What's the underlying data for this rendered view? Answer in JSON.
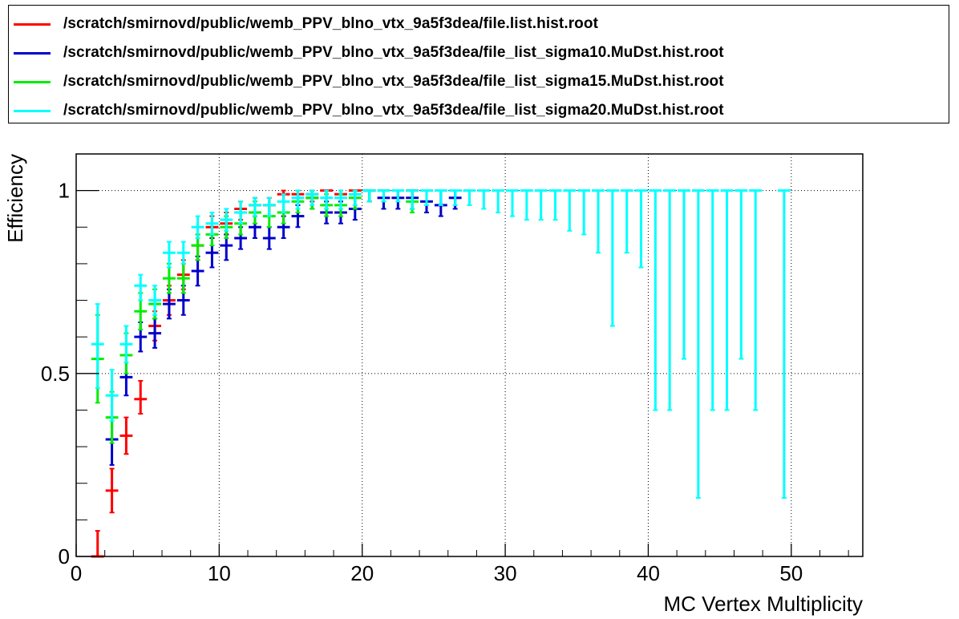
{
  "chart_data": {
    "type": "scatter",
    "title": "",
    "xlabel": "MC Vertex Multiplicity",
    "ylabel": "Efficiency",
    "xlim": [
      0,
      55
    ],
    "ylim": [
      0,
      1.1
    ],
    "grid": true,
    "legend_position": "top",
    "x_tick_labels": [
      "0",
      "10",
      "20",
      "30",
      "40",
      "50"
    ],
    "y_tick_labels": [
      "0",
      "0.5",
      "1"
    ],
    "series": [
      {
        "name": "/scratch/smirnovd/public/wemb_PPV_blno_vtx_9a5f3dea/file.list.hist.root",
        "color": "#ff0000",
        "points": [
          {
            "x": 1.5,
            "y": 0.0,
            "lo": 0.0,
            "hi": 0.07
          },
          {
            "x": 2.5,
            "y": 0.18,
            "lo": 0.12,
            "hi": 0.24
          },
          {
            "x": 3.5,
            "y": 0.33,
            "lo": 0.28,
            "hi": 0.38
          },
          {
            "x": 4.5,
            "y": 0.43,
            "lo": 0.39,
            "hi": 0.48
          },
          {
            "x": 5.5,
            "y": 0.63,
            "lo": 0.59,
            "hi": 0.67
          },
          {
            "x": 6.5,
            "y": 0.7,
            "lo": 0.66,
            "hi": 0.74
          },
          {
            "x": 7.5,
            "y": 0.77,
            "lo": 0.73,
            "hi": 0.81
          },
          {
            "x": 8.5,
            "y": 0.85,
            "lo": 0.81,
            "hi": 0.88
          },
          {
            "x": 9.5,
            "y": 0.9,
            "lo": 0.87,
            "hi": 0.93
          },
          {
            "x": 10.5,
            "y": 0.91,
            "lo": 0.88,
            "hi": 0.94
          },
          {
            "x": 11.5,
            "y": 0.95,
            "lo": 0.92,
            "hi": 0.97
          },
          {
            "x": 12.5,
            "y": 0.96,
            "lo": 0.93,
            "hi": 0.98
          },
          {
            "x": 13.5,
            "y": 0.96,
            "lo": 0.93,
            "hi": 0.98
          },
          {
            "x": 14.5,
            "y": 0.99,
            "lo": 0.97,
            "hi": 1.0
          },
          {
            "x": 15.5,
            "y": 0.99,
            "lo": 0.97,
            "hi": 1.0
          },
          {
            "x": 16.5,
            "y": 0.99,
            "lo": 0.97,
            "hi": 1.0
          },
          {
            "x": 17.5,
            "y": 1.0,
            "lo": 0.98,
            "hi": 1.0
          },
          {
            "x": 18.5,
            "y": 0.99,
            "lo": 0.97,
            "hi": 1.0
          },
          {
            "x": 19.5,
            "y": 1.0,
            "lo": 0.98,
            "hi": 1.0
          },
          {
            "x": 23.5,
            "y": 1.0,
            "lo": 0.97,
            "hi": 1.0
          }
        ]
      },
      {
        "name": "/scratch/smirnovd/public/wemb_PPV_blno_vtx_9a5f3dea/file_list_sigma10.MuDst.hist.root",
        "color": "#0000cc",
        "points": [
          {
            "x": 2.5,
            "y": 0.32,
            "lo": 0.25,
            "hi": 0.38
          },
          {
            "x": 3.5,
            "y": 0.49,
            "lo": 0.44,
            "hi": 0.55
          },
          {
            "x": 4.5,
            "y": 0.6,
            "lo": 0.56,
            "hi": 0.64
          },
          {
            "x": 5.5,
            "y": 0.61,
            "lo": 0.57,
            "hi": 0.65
          },
          {
            "x": 6.5,
            "y": 0.69,
            "lo": 0.65,
            "hi": 0.73
          },
          {
            "x": 7.5,
            "y": 0.7,
            "lo": 0.66,
            "hi": 0.74
          },
          {
            "x": 8.5,
            "y": 0.78,
            "lo": 0.74,
            "hi": 0.82
          },
          {
            "x": 9.5,
            "y": 0.83,
            "lo": 0.79,
            "hi": 0.87
          },
          {
            "x": 10.5,
            "y": 0.85,
            "lo": 0.81,
            "hi": 0.88
          },
          {
            "x": 11.5,
            "y": 0.87,
            "lo": 0.84,
            "hi": 0.9
          },
          {
            "x": 12.5,
            "y": 0.9,
            "lo": 0.87,
            "hi": 0.93
          },
          {
            "x": 13.5,
            "y": 0.87,
            "lo": 0.84,
            "hi": 0.9
          },
          {
            "x": 14.5,
            "y": 0.9,
            "lo": 0.87,
            "hi": 0.93
          },
          {
            "x": 15.5,
            "y": 0.93,
            "lo": 0.9,
            "hi": 0.96
          },
          {
            "x": 16.5,
            "y": 0.98,
            "lo": 0.95,
            "hi": 1.0
          },
          {
            "x": 17.5,
            "y": 0.94,
            "lo": 0.91,
            "hi": 0.97
          },
          {
            "x": 18.5,
            "y": 0.94,
            "lo": 0.91,
            "hi": 0.97
          },
          {
            "x": 19.5,
            "y": 0.95,
            "lo": 0.92,
            "hi": 0.98
          },
          {
            "x": 20.5,
            "y": 1.0,
            "lo": 0.97,
            "hi": 1.0
          },
          {
            "x": 21.5,
            "y": 0.98,
            "lo": 0.95,
            "hi": 1.0
          },
          {
            "x": 22.5,
            "y": 0.98,
            "lo": 0.95,
            "hi": 1.0
          },
          {
            "x": 23.5,
            "y": 0.98,
            "lo": 0.95,
            "hi": 1.0
          },
          {
            "x": 24.5,
            "y": 0.97,
            "lo": 0.94,
            "hi": 1.0
          },
          {
            "x": 25.5,
            "y": 0.96,
            "lo": 0.93,
            "hi": 1.0
          },
          {
            "x": 26.5,
            "y": 0.98,
            "lo": 0.95,
            "hi": 1.0
          }
        ]
      },
      {
        "name": "/scratch/smirnovd/public/wemb_PPV_blno_vtx_9a5f3dea/file_list_sigma15.MuDst.hist.root",
        "color": "#00ee00",
        "points": [
          {
            "x": 1.5,
            "y": 0.54,
            "lo": 0.42,
            "hi": 0.66
          },
          {
            "x": 2.5,
            "y": 0.38,
            "lo": 0.31,
            "hi": 0.45
          },
          {
            "x": 3.5,
            "y": 0.55,
            "lo": 0.5,
            "hi": 0.61
          },
          {
            "x": 4.5,
            "y": 0.67,
            "lo": 0.62,
            "hi": 0.72
          },
          {
            "x": 5.5,
            "y": 0.69,
            "lo": 0.65,
            "hi": 0.73
          },
          {
            "x": 6.5,
            "y": 0.76,
            "lo": 0.72,
            "hi": 0.8
          },
          {
            "x": 7.5,
            "y": 0.76,
            "lo": 0.72,
            "hi": 0.8
          },
          {
            "x": 8.5,
            "y": 0.85,
            "lo": 0.81,
            "hi": 0.88
          },
          {
            "x": 9.5,
            "y": 0.88,
            "lo": 0.85,
            "hi": 0.91
          },
          {
            "x": 10.5,
            "y": 0.9,
            "lo": 0.87,
            "hi": 0.93
          },
          {
            "x": 11.5,
            "y": 0.91,
            "lo": 0.88,
            "hi": 0.94
          },
          {
            "x": 12.5,
            "y": 0.94,
            "lo": 0.91,
            "hi": 0.97
          },
          {
            "x": 13.5,
            "y": 0.93,
            "lo": 0.9,
            "hi": 0.96
          },
          {
            "x": 14.5,
            "y": 0.94,
            "lo": 0.91,
            "hi": 0.97
          },
          {
            "x": 15.5,
            "y": 0.97,
            "lo": 0.94,
            "hi": 1.0
          },
          {
            "x": 16.5,
            "y": 0.98,
            "lo": 0.95,
            "hi": 1.0
          },
          {
            "x": 17.5,
            "y": 0.96,
            "lo": 0.93,
            "hi": 0.99
          },
          {
            "x": 18.5,
            "y": 0.96,
            "lo": 0.93,
            "hi": 0.99
          },
          {
            "x": 19.5,
            "y": 0.98,
            "lo": 0.95,
            "hi": 1.0
          },
          {
            "x": 20.5,
            "y": 1.0,
            "lo": 0.97,
            "hi": 1.0
          },
          {
            "x": 21.5,
            "y": 1.0,
            "lo": 0.97,
            "hi": 1.0
          },
          {
            "x": 23.5,
            "y": 0.97,
            "lo": 0.94,
            "hi": 1.0
          }
        ]
      },
      {
        "name": "/scratch/smirnovd/public/wemb_PPV_blno_vtx_9a5f3dea/file_list_sigma20.MuDst.hist.root",
        "color": "#00ffff",
        "points": [
          {
            "x": 1.5,
            "y": 0.58,
            "lo": 0.46,
            "hi": 0.69
          },
          {
            "x": 2.5,
            "y": 0.44,
            "lo": 0.37,
            "hi": 0.51
          },
          {
            "x": 3.5,
            "y": 0.58,
            "lo": 0.53,
            "hi": 0.63
          },
          {
            "x": 4.5,
            "y": 0.74,
            "lo": 0.7,
            "hi": 0.77
          },
          {
            "x": 5.5,
            "y": 0.7,
            "lo": 0.66,
            "hi": 0.74
          },
          {
            "x": 6.5,
            "y": 0.83,
            "lo": 0.79,
            "hi": 0.86
          },
          {
            "x": 7.5,
            "y": 0.83,
            "lo": 0.8,
            "hi": 0.86
          },
          {
            "x": 8.5,
            "y": 0.9,
            "lo": 0.87,
            "hi": 0.93
          },
          {
            "x": 9.5,
            "y": 0.91,
            "lo": 0.88,
            "hi": 0.94
          },
          {
            "x": 10.5,
            "y": 0.92,
            "lo": 0.89,
            "hi": 0.95
          },
          {
            "x": 11.5,
            "y": 0.94,
            "lo": 0.91,
            "hi": 0.97
          },
          {
            "x": 12.5,
            "y": 0.96,
            "lo": 0.93,
            "hi": 0.98
          },
          {
            "x": 13.5,
            "y": 0.96,
            "lo": 0.93,
            "hi": 0.98
          },
          {
            "x": 14.5,
            "y": 0.97,
            "lo": 0.94,
            "hi": 0.99
          },
          {
            "x": 15.5,
            "y": 0.98,
            "lo": 0.95,
            "hi": 1.0
          },
          {
            "x": 16.5,
            "y": 0.99,
            "lo": 0.96,
            "hi": 1.0
          },
          {
            "x": 17.5,
            "y": 0.98,
            "lo": 0.95,
            "hi": 1.0
          },
          {
            "x": 18.5,
            "y": 0.98,
            "lo": 0.95,
            "hi": 1.0
          },
          {
            "x": 19.5,
            "y": 0.99,
            "lo": 0.96,
            "hi": 1.0
          },
          {
            "x": 20.5,
            "y": 1.0,
            "lo": 0.97,
            "hi": 1.0
          },
          {
            "x": 21.5,
            "y": 1.0,
            "lo": 0.97,
            "hi": 1.0
          },
          {
            "x": 22.5,
            "y": 1.0,
            "lo": 0.97,
            "hi": 1.0
          },
          {
            "x": 23.5,
            "y": 1.0,
            "lo": 0.95,
            "hi": 1.0
          },
          {
            "x": 24.5,
            "y": 1.0,
            "lo": 0.96,
            "hi": 1.0
          },
          {
            "x": 25.5,
            "y": 1.0,
            "lo": 0.96,
            "hi": 1.0
          },
          {
            "x": 26.5,
            "y": 1.0,
            "lo": 0.96,
            "hi": 1.0
          },
          {
            "x": 27.5,
            "y": 1.0,
            "lo": 0.96,
            "hi": 1.0
          },
          {
            "x": 28.5,
            "y": 1.0,
            "lo": 0.95,
            "hi": 1.0
          },
          {
            "x": 29.5,
            "y": 1.0,
            "lo": 0.94,
            "hi": 1.0
          },
          {
            "x": 30.5,
            "y": 1.0,
            "lo": 0.93,
            "hi": 1.0
          },
          {
            "x": 31.5,
            "y": 1.0,
            "lo": 0.92,
            "hi": 1.0
          },
          {
            "x": 32.5,
            "y": 1.0,
            "lo": 0.92,
            "hi": 1.0
          },
          {
            "x": 33.5,
            "y": 1.0,
            "lo": 0.92,
            "hi": 1.0
          },
          {
            "x": 34.5,
            "y": 1.0,
            "lo": 0.89,
            "hi": 1.0
          },
          {
            "x": 35.5,
            "y": 1.0,
            "lo": 0.88,
            "hi": 1.0
          },
          {
            "x": 36.5,
            "y": 1.0,
            "lo": 0.83,
            "hi": 1.0
          },
          {
            "x": 37.5,
            "y": 1.0,
            "lo": 0.63,
            "hi": 1.0
          },
          {
            "x": 38.5,
            "y": 1.0,
            "lo": 0.83,
            "hi": 1.0
          },
          {
            "x": 39.5,
            "y": 1.0,
            "lo": 0.79,
            "hi": 1.0
          },
          {
            "x": 40.5,
            "y": 1.0,
            "lo": 0.4,
            "hi": 1.0
          },
          {
            "x": 41.5,
            "y": 1.0,
            "lo": 0.4,
            "hi": 1.0
          },
          {
            "x": 42.5,
            "y": 1.0,
            "lo": 0.54,
            "hi": 1.0
          },
          {
            "x": 43.5,
            "y": 1.0,
            "lo": 0.16,
            "hi": 1.0
          },
          {
            "x": 44.5,
            "y": 1.0,
            "lo": 0.4,
            "hi": 1.0
          },
          {
            "x": 45.5,
            "y": 1.0,
            "lo": 0.4,
            "hi": 1.0
          },
          {
            "x": 46.5,
            "y": 1.0,
            "lo": 0.54,
            "hi": 1.0
          },
          {
            "x": 47.5,
            "y": 1.0,
            "lo": 0.4,
            "hi": 1.0
          },
          {
            "x": 49.5,
            "y": 1.0,
            "lo": 0.16,
            "hi": 1.0
          }
        ]
      }
    ]
  }
}
